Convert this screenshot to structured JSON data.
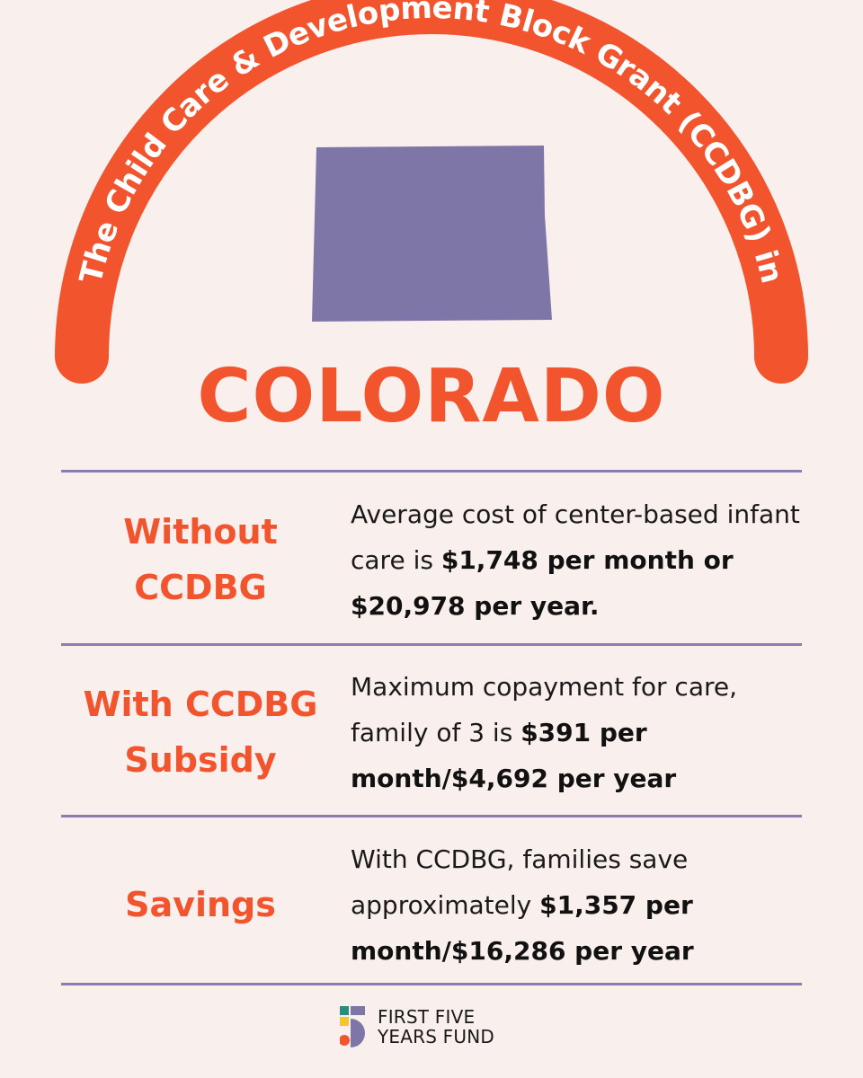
{
  "header": {
    "arc_title": "The Child Care & Development Block Grant (CCDBG) in",
    "state": "COLORADO"
  },
  "rows": [
    {
      "label": "Without\nCCDBG",
      "text_plain": "Average cost of center-based infant care is ",
      "text_bold": "$1,748 per month or $20,978 per year."
    },
    {
      "label": "With CCDBG\nSubsidy",
      "text_plain": "Maximum copayment for care, family of 3 is ",
      "text_bold": "$391 per month/$4,692 per year"
    },
    {
      "label": "Savings",
      "text_plain": "With CCDBG, families save approximately ",
      "text_bold": "$1,357 per month/$16,286 per year"
    }
  ],
  "footer": {
    "logo_line1": "FIRST FIVE",
    "logo_line2": "YEARS FUND"
  },
  "colors": {
    "background": "#F9EFEC",
    "accent_orange": "#F2542D",
    "state_purple": "#7F76A8",
    "divider_purple": "#8A7DB0",
    "logo_teal": "#2A8C7E",
    "logo_orange": "#F2542D",
    "logo_yellow": "#F5C62C",
    "logo_purple": "#7F76A8"
  },
  "icons": {
    "state_shape": "colorado-map-icon",
    "brand_mark": "first-five-years-fund-logo-icon"
  }
}
